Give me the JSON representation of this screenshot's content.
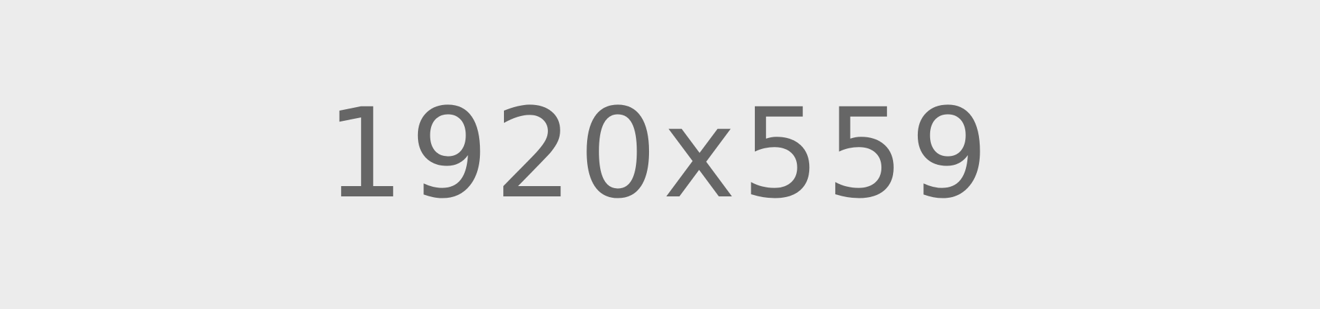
{
  "placeholder": {
    "text": "1920x559",
    "background_color": "#ececec",
    "text_color": "#666666"
  }
}
